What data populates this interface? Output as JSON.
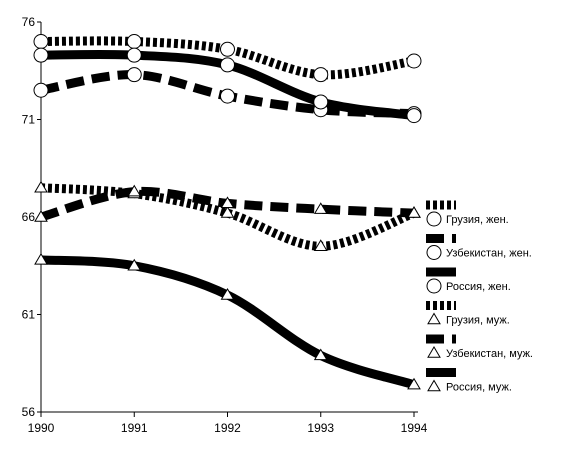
{
  "chart_data": {
    "type": "line",
    "title": "",
    "xlabel": "",
    "ylabel": "",
    "x": [
      "1990",
      "1991",
      "1992",
      "1993",
      "1994"
    ],
    "yticks": [
      "76",
      "71",
      "66",
      "61",
      "56"
    ],
    "ylim": [
      56,
      76
    ],
    "grid": false,
    "legend_position": "right",
    "series": [
      {
        "name": "Грузия, жен.",
        "values": [
          75.0,
          75.0,
          74.6,
          73.3,
          74.0
        ],
        "line_style": "dotted",
        "marker": "circle",
        "color": "#000000"
      },
      {
        "name": "Узбекистан, жен.",
        "values": [
          72.5,
          73.3,
          72.2,
          71.5,
          71.3
        ],
        "line_style": "dashed",
        "marker": "circle",
        "color": "#000000"
      },
      {
        "name": "Россия, жен.",
        "values": [
          74.3,
          74.3,
          73.8,
          71.9,
          71.2
        ],
        "line_style": "solid",
        "marker": "circle",
        "color": "#000000"
      },
      {
        "name": "Грузия, муж.",
        "values": [
          67.5,
          67.2,
          66.2,
          64.5,
          66.2
        ],
        "line_style": "dotted",
        "marker": "triangle",
        "color": "#000000"
      },
      {
        "name": "Узбекистан, муж.",
        "values": [
          66.0,
          67.3,
          66.7,
          66.4,
          66.2
        ],
        "line_style": "dashed",
        "marker": "triangle",
        "color": "#000000"
      },
      {
        "name": "Россия, муж.",
        "values": [
          63.8,
          63.5,
          62.0,
          58.9,
          57.4
        ],
        "line_style": "solid",
        "marker": "triangle",
        "color": "#000000"
      }
    ]
  }
}
